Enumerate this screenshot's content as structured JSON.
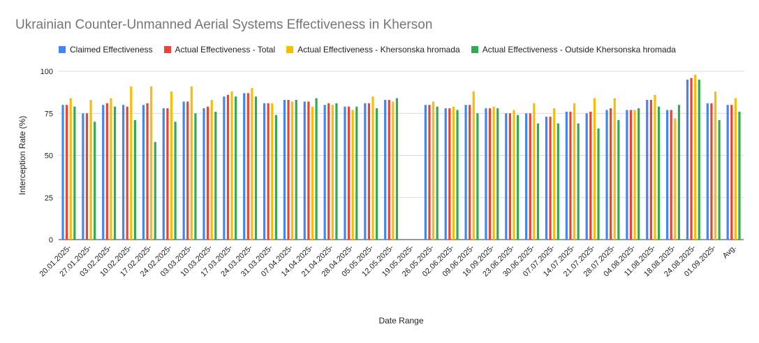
{
  "chart_data": {
    "type": "bar",
    "title": "Ukrainian Counter-Unmanned Aerial Systems Effectiveness in Kherson",
    "xlabel": "Date Range",
    "ylabel": "Interception Rate (%)",
    "ylim": [
      0,
      100
    ],
    "yticks": [
      0,
      25,
      50,
      75,
      100
    ],
    "grid": true,
    "legend_position": "top",
    "categories": [
      "20.01.2025-",
      "27.01.2025-",
      "03.02.2025-",
      "10.02.2025-",
      "17.02.2025-",
      "24.02.2025-",
      "03.03.2025-",
      "10.03.2025-",
      "17.03.2025-",
      "24.03.2025-",
      "31.03.2025-",
      "07.04.2025-",
      "14.04.2025-",
      "21.04.2025-",
      "28.04.2025-",
      "05.05.2025-",
      "12.05.2025-",
      "19.05.2025-",
      "26.05.2025-",
      "02.06.2025-",
      "09.06.2025-",
      "16.09.2025-",
      "23.06.2025-",
      "30.06.2025-",
      "07.07.2025-",
      "14.07.2025-",
      "21.07.2025-",
      "28.07.2025-",
      "04.08.2025-",
      "11.08.2025-",
      "18.08.2025-",
      "24.08.2025-",
      "01.09.2025-",
      "Avg."
    ],
    "series": [
      {
        "name": "Claimed Effectiveness",
        "color": "#4285f4",
        "values": [
          80,
          75,
          80,
          80,
          80,
          78,
          82,
          78,
          85,
          87,
          81,
          83,
          82,
          80,
          79,
          81,
          83,
          null,
          80,
          78,
          80,
          78,
          75,
          75,
          73,
          76,
          75,
          77,
          77,
          83,
          77,
          95,
          81,
          80
        ]
      },
      {
        "name": "Actual Effectiveness - Total",
        "color": "#ea4335",
        "values": [
          80,
          75,
          81,
          79,
          81,
          78,
          82,
          79,
          86,
          87,
          81,
          83,
          82,
          81,
          79,
          81,
          83,
          null,
          80,
          78,
          80,
          78,
          75,
          75,
          73,
          76,
          76,
          78,
          77,
          83,
          77,
          96,
          81,
          80
        ]
      },
      {
        "name": "Actual Effectiveness - Khersonska hromada",
        "color": "#fbbc04",
        "values": [
          84,
          83,
          84,
          91,
          91,
          88,
          91,
          83,
          88,
          90,
          81,
          82,
          79,
          80,
          77,
          85,
          82,
          null,
          82,
          79,
          88,
          79,
          77,
          81,
          78,
          81,
          84,
          84,
          77,
          86,
          72,
          98,
          88,
          84
        ]
      },
      {
        "name": "Actual Effectiveness - Outside Khersonska hromada",
        "color": "#34a853",
        "values": [
          79,
          70,
          79,
          71,
          58,
          70,
          75,
          76,
          85,
          85,
          74,
          83,
          84,
          81,
          79,
          78,
          84,
          null,
          79,
          77,
          75,
          78,
          74,
          69,
          69,
          69,
          66,
          71,
          78,
          79,
          80,
          95,
          71,
          76
        ]
      }
    ]
  }
}
